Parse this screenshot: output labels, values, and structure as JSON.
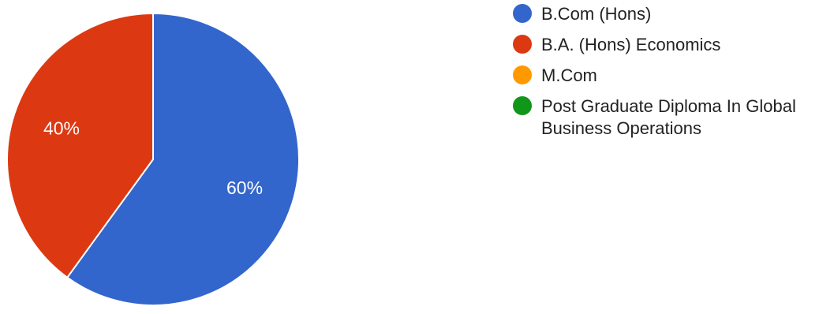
{
  "chart_data": {
    "type": "pie",
    "categories": [
      "B.Com (Hons)",
      "B.A. (Hons) Economics",
      "M.Com",
      "Post Graduate Diploma In Global Business Operations"
    ],
    "values": [
      60,
      40,
      0,
      0
    ],
    "colors": [
      "#3366cc",
      "#dc3912",
      "#ff9900",
      "#109618"
    ],
    "data_labels": [
      "60%",
      "40%",
      "",
      ""
    ],
    "start_angle_deg": 90,
    "direction": "clockwise",
    "legend_position": "right"
  }
}
